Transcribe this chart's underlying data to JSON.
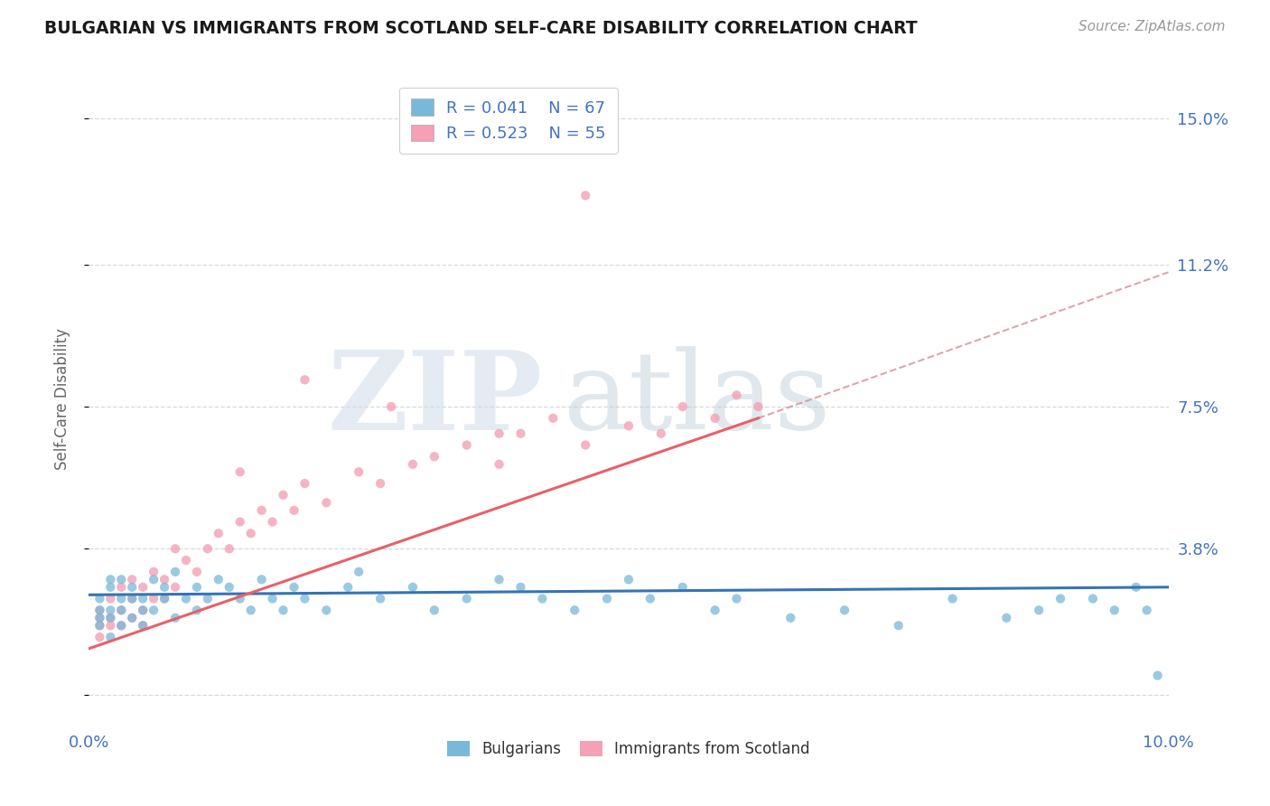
{
  "title": "BULGARIAN VS IMMIGRANTS FROM SCOTLAND SELF-CARE DISABILITY CORRELATION CHART",
  "source": "Source: ZipAtlas.com",
  "ylabel": "Self-Care Disability",
  "yticks": [
    0.0,
    0.038,
    0.075,
    0.112,
    0.15
  ],
  "ytick_labels": [
    "",
    "3.8%",
    "7.5%",
    "11.2%",
    "15.0%"
  ],
  "xlim": [
    0.0,
    0.1
  ],
  "ylim": [
    -0.008,
    0.162
  ],
  "bulgarians_R": 0.041,
  "bulgarians_N": 67,
  "scotland_R": 0.523,
  "scotland_N": 55,
  "blue_color": "#7ab8d9",
  "pink_color": "#f4a0b5",
  "blue_line_color": "#3474b5",
  "pink_line_color": "#e8606a",
  "pink_dash_color": "#d4909a",
  "watermark_zip_color": "#d0dce8",
  "watermark_atlas_color": "#c8d8e0",
  "title_color": "#1a1a1a",
  "axis_label_color": "#4472c4",
  "legend_R_color": "#4472c4",
  "background_color": "#ffffff",
  "grid_color": "#c8d0dc",
  "bulgarians_x": [
    0.001,
    0.001,
    0.001,
    0.001,
    0.002,
    0.002,
    0.002,
    0.002,
    0.002,
    0.003,
    0.003,
    0.003,
    0.003,
    0.004,
    0.004,
    0.004,
    0.005,
    0.005,
    0.005,
    0.006,
    0.006,
    0.007,
    0.007,
    0.008,
    0.008,
    0.009,
    0.01,
    0.01,
    0.011,
    0.012,
    0.013,
    0.014,
    0.015,
    0.016,
    0.017,
    0.018,
    0.019,
    0.02,
    0.022,
    0.024,
    0.025,
    0.027,
    0.03,
    0.032,
    0.035,
    0.038,
    0.04,
    0.042,
    0.045,
    0.048,
    0.05,
    0.052,
    0.055,
    0.058,
    0.06,
    0.065,
    0.07,
    0.075,
    0.08,
    0.085,
    0.088,
    0.09,
    0.093,
    0.095,
    0.097,
    0.098,
    0.099
  ],
  "bulgarians_y": [
    0.022,
    0.018,
    0.025,
    0.02,
    0.03,
    0.015,
    0.028,
    0.02,
    0.022,
    0.025,
    0.018,
    0.03,
    0.022,
    0.025,
    0.02,
    0.028,
    0.022,
    0.025,
    0.018,
    0.03,
    0.022,
    0.025,
    0.028,
    0.02,
    0.032,
    0.025,
    0.028,
    0.022,
    0.025,
    0.03,
    0.028,
    0.025,
    0.022,
    0.03,
    0.025,
    0.022,
    0.028,
    0.025,
    0.022,
    0.028,
    0.032,
    0.025,
    0.028,
    0.022,
    0.025,
    0.03,
    0.028,
    0.025,
    0.022,
    0.025,
    0.03,
    0.025,
    0.028,
    0.022,
    0.025,
    0.02,
    0.022,
    0.018,
    0.025,
    0.02,
    0.022,
    0.025,
    0.025,
    0.022,
    0.028,
    0.022,
    0.005
  ],
  "scotland_x": [
    0.001,
    0.001,
    0.001,
    0.001,
    0.002,
    0.002,
    0.002,
    0.003,
    0.003,
    0.003,
    0.004,
    0.004,
    0.004,
    0.005,
    0.005,
    0.005,
    0.006,
    0.006,
    0.007,
    0.007,
    0.008,
    0.008,
    0.009,
    0.01,
    0.011,
    0.012,
    0.013,
    0.014,
    0.015,
    0.016,
    0.017,
    0.018,
    0.019,
    0.02,
    0.022,
    0.025,
    0.027,
    0.03,
    0.032,
    0.035,
    0.038,
    0.04,
    0.043,
    0.046,
    0.05,
    0.053,
    0.055,
    0.058,
    0.06,
    0.062,
    0.014,
    0.02,
    0.028,
    0.038,
    0.046
  ],
  "scotland_y": [
    0.02,
    0.022,
    0.018,
    0.015,
    0.025,
    0.02,
    0.018,
    0.028,
    0.022,
    0.018,
    0.03,
    0.025,
    0.02,
    0.028,
    0.022,
    0.018,
    0.032,
    0.025,
    0.03,
    0.025,
    0.038,
    0.028,
    0.035,
    0.032,
    0.038,
    0.042,
    0.038,
    0.045,
    0.042,
    0.048,
    0.045,
    0.052,
    0.048,
    0.055,
    0.05,
    0.058,
    0.055,
    0.06,
    0.062,
    0.065,
    0.06,
    0.068,
    0.072,
    0.065,
    0.07,
    0.068,
    0.075,
    0.072,
    0.078,
    0.075,
    0.058,
    0.082,
    0.075,
    0.068,
    0.13
  ],
  "blue_trend_x": [
    0.0,
    0.1
  ],
  "blue_trend_y": [
    0.026,
    0.028
  ],
  "pink_trend_x": [
    0.0,
    0.062
  ],
  "pink_trend_y": [
    0.012,
    0.072
  ],
  "pink_dash_trend_x": [
    0.062,
    0.1
  ],
  "pink_dash_trend_y": [
    0.072,
    0.11
  ]
}
